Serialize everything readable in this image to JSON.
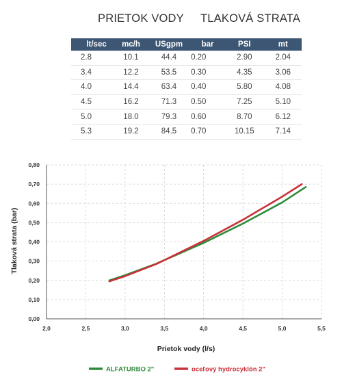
{
  "headings": {
    "flow": "PRIETOK VODY",
    "loss": "TLAKOVÁ STRATA"
  },
  "table": {
    "columns": [
      "lt/sec",
      "mc/h",
      "USgpm",
      "bar",
      "PSI",
      "mt"
    ],
    "rows": [
      [
        "2.8",
        "10.1",
        "44.4",
        "0.20",
        "2.90",
        "2.04"
      ],
      [
        "3.4",
        "12.2",
        "53.5",
        "0.30",
        "4.35",
        "3.06"
      ],
      [
        "4.0",
        "14.4",
        "63.4",
        "0.40",
        "5.80",
        "4.08"
      ],
      [
        "4.5",
        "16.2",
        "71.3",
        "0.50",
        "7.25",
        "5.10"
      ],
      [
        "5.0",
        "18.0",
        "79.3",
        "0.60",
        "8.70",
        "6.12"
      ],
      [
        "5.3",
        "19.2",
        "84.5",
        "0.70",
        "10.15",
        "7.14"
      ]
    ]
  },
  "colors": {
    "header_bg": "#3c5673",
    "series_green": "#2e8b3a",
    "series_red": "#c8323a"
  },
  "chart_data": {
    "type": "line",
    "title": "",
    "xlabel": "Prietok vody (l/s)",
    "ylabel": "Tlaková strata (bar)",
    "xlim": [
      2.0,
      5.5
    ],
    "ylim": [
      0.0,
      0.8
    ],
    "x_ticks": [
      "2,0",
      "2,5",
      "3,0",
      "3,5",
      "4,0",
      "4,5",
      "5,0",
      "5,5"
    ],
    "y_ticks": [
      "0,00",
      "0,10",
      "0,20",
      "0,30",
      "0,40",
      "0,50",
      "0,60",
      "0,70",
      "0,80"
    ],
    "grid": true,
    "legend_position": "bottom",
    "series": [
      {
        "name": "ALFATURBO 2\"",
        "color": "#2e8b3a",
        "x": [
          2.8,
          3.0,
          3.4,
          3.5,
          4.0,
          4.5,
          5.0,
          5.3
        ],
        "y": [
          0.2,
          0.227,
          0.287,
          0.305,
          0.395,
          0.495,
          0.605,
          0.685
        ]
      },
      {
        "name": "oceľový hydrocyklón 2\"",
        "color": "#c8323a",
        "x": [
          2.8,
          3.0,
          3.4,
          3.5,
          4.0,
          4.5,
          5.0,
          5.25
        ],
        "y": [
          0.195,
          0.222,
          0.285,
          0.305,
          0.405,
          0.515,
          0.635,
          0.7
        ]
      }
    ]
  }
}
